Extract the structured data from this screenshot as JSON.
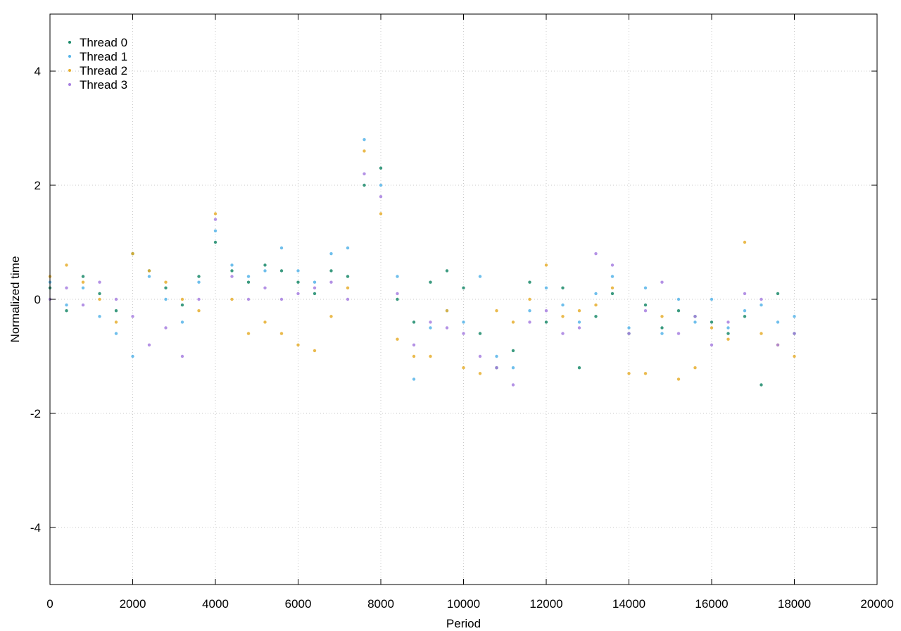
{
  "chart_data": {
    "type": "scatter",
    "title": "",
    "xlabel": "Period",
    "ylabel": "Normalized time",
    "xlim": [
      0,
      20000
    ],
    "ylim": [
      -5,
      5
    ],
    "xticks": [
      0,
      2000,
      4000,
      6000,
      8000,
      10000,
      12000,
      14000,
      16000,
      18000,
      20000
    ],
    "yticks": [
      -4,
      -2,
      0,
      2,
      4
    ],
    "xtick_labels": [
      "0",
      "2000",
      "4000",
      "6000",
      "8000",
      "10000",
      "12000",
      "14000",
      "16000",
      "18000",
      "20000"
    ],
    "ytick_labels": [
      "-4",
      "-2",
      "0",
      "2",
      "4"
    ],
    "grid": true,
    "legend_position": "top-left",
    "series": [
      {
        "name": "Thread 0",
        "color": "#1a8a6a",
        "x": [
          0,
          400,
          800,
          1200,
          1600,
          2000,
          2400,
          2800,
          3200,
          3600,
          4000,
          4400,
          4800,
          5200,
          5600,
          6000,
          6400,
          6800,
          7200,
          7600,
          8000,
          8400,
          8800,
          9200,
          9600,
          10000,
          10400,
          10800,
          11200,
          11600,
          12000,
          12400,
          12800,
          13200,
          13600,
          14000,
          14400,
          14800,
          15200,
          15600,
          16000,
          16400,
          16800,
          17200,
          17600,
          18000
        ],
        "y": [
          0.2,
          -0.2,
          0.4,
          0.1,
          -0.2,
          0.8,
          0.5,
          0.2,
          -0.1,
          0.4,
          1.0,
          0.5,
          0.3,
          0.6,
          0.5,
          0.3,
          0.1,
          0.5,
          0.4,
          2.0,
          2.3,
          0.0,
          -0.4,
          0.3,
          0.5,
          0.2,
          -0.6,
          -1.2,
          -0.9,
          0.3,
          -0.4,
          0.2,
          -1.2,
          -0.3,
          0.1,
          -0.6,
          -0.1,
          -0.5,
          -0.2,
          -0.3,
          -0.4,
          -0.6,
          -0.3,
          -1.5,
          0.1,
          -0.6
        ]
      },
      {
        "name": "Thread 1",
        "color": "#56b4e9",
        "x": [
          0,
          400,
          800,
          1200,
          1600,
          2000,
          2400,
          2800,
          3200,
          3600,
          4000,
          4400,
          4800,
          5200,
          5600,
          6000,
          6400,
          6800,
          7200,
          7600,
          8000,
          8400,
          8800,
          9200,
          9600,
          10000,
          10400,
          10800,
          11200,
          11600,
          12000,
          12400,
          12800,
          13200,
          13600,
          14000,
          14400,
          14800,
          15200,
          15600,
          16000,
          16400,
          16800,
          17200,
          17600,
          18000
        ],
        "y": [
          0.3,
          -0.1,
          0.2,
          -0.3,
          -0.6,
          -1.0,
          0.4,
          0.0,
          -0.4,
          0.3,
          1.2,
          0.6,
          0.4,
          0.5,
          0.9,
          0.5,
          0.3,
          0.8,
          0.9,
          2.8,
          2.0,
          0.4,
          -1.4,
          -0.5,
          -0.2,
          -0.4,
          0.4,
          -1.0,
          -1.2,
          -0.2,
          0.2,
          -0.1,
          -0.4,
          0.1,
          0.4,
          -0.5,
          0.2,
          -0.6,
          0.0,
          -0.4,
          0.0,
          -0.5,
          -0.2,
          -0.1,
          -0.4,
          -0.3
        ]
      },
      {
        "name": "Thread 2",
        "color": "#e6ae2e",
        "x": [
          0,
          400,
          800,
          1200,
          1600,
          2000,
          2400,
          2800,
          3200,
          3600,
          4000,
          4400,
          4800,
          5200,
          5600,
          6000,
          6400,
          6800,
          7200,
          7600,
          8000,
          8400,
          8800,
          9200,
          9600,
          10000,
          10400,
          10800,
          11200,
          11600,
          12000,
          12400,
          12800,
          13200,
          13600,
          14000,
          14400,
          14800,
          15200,
          15600,
          16000,
          16400,
          16800,
          17200,
          17600,
          18000
        ],
        "y": [
          0.4,
          0.6,
          0.3,
          0.0,
          -0.4,
          0.8,
          0.5,
          0.3,
          0.0,
          -0.2,
          1.5,
          0.0,
          -0.6,
          -0.4,
          -0.6,
          -0.8,
          -0.9,
          -0.3,
          0.2,
          2.6,
          1.5,
          -0.7,
          -1.0,
          -1.0,
          -0.2,
          -1.2,
          -1.3,
          -0.2,
          -0.4,
          0.0,
          0.6,
          -0.3,
          -0.2,
          -0.1,
          0.2,
          -1.3,
          -1.3,
          -0.3,
          -1.4,
          -1.2,
          -0.5,
          -0.7,
          1.0,
          -0.6,
          -0.8,
          -1.0
        ]
      },
      {
        "name": "Thread 3",
        "color": "#a77fe0",
        "x": [
          0,
          400,
          800,
          1200,
          1600,
          2000,
          2400,
          2800,
          3200,
          3600,
          4000,
          4400,
          4800,
          5200,
          5600,
          6000,
          6400,
          6800,
          7200,
          7600,
          8000,
          8400,
          8800,
          9200,
          9600,
          10000,
          10400,
          10800,
          11200,
          11600,
          12000,
          12400,
          12800,
          13200,
          13600,
          14000,
          14400,
          14800,
          15200,
          15600,
          16000,
          16400,
          16800,
          17200,
          17600,
          18000
        ],
        "y": [
          0.0,
          0.2,
          -0.1,
          0.3,
          0.0,
          -0.3,
          -0.8,
          -0.5,
          -1.0,
          0.0,
          1.4,
          0.4,
          0.0,
          0.2,
          0.0,
          0.1,
          0.2,
          0.3,
          0.0,
          2.2,
          1.8,
          0.1,
          -0.8,
          -0.4,
          -0.5,
          -0.6,
          -1.0,
          -1.2,
          -1.5,
          -0.4,
          -0.2,
          -0.6,
          -0.5,
          0.8,
          0.6,
          -0.6,
          -0.2,
          0.3,
          -0.6,
          -0.3,
          -0.8,
          -0.4,
          0.1,
          0.0,
          -0.8,
          -0.6
        ]
      }
    ]
  }
}
